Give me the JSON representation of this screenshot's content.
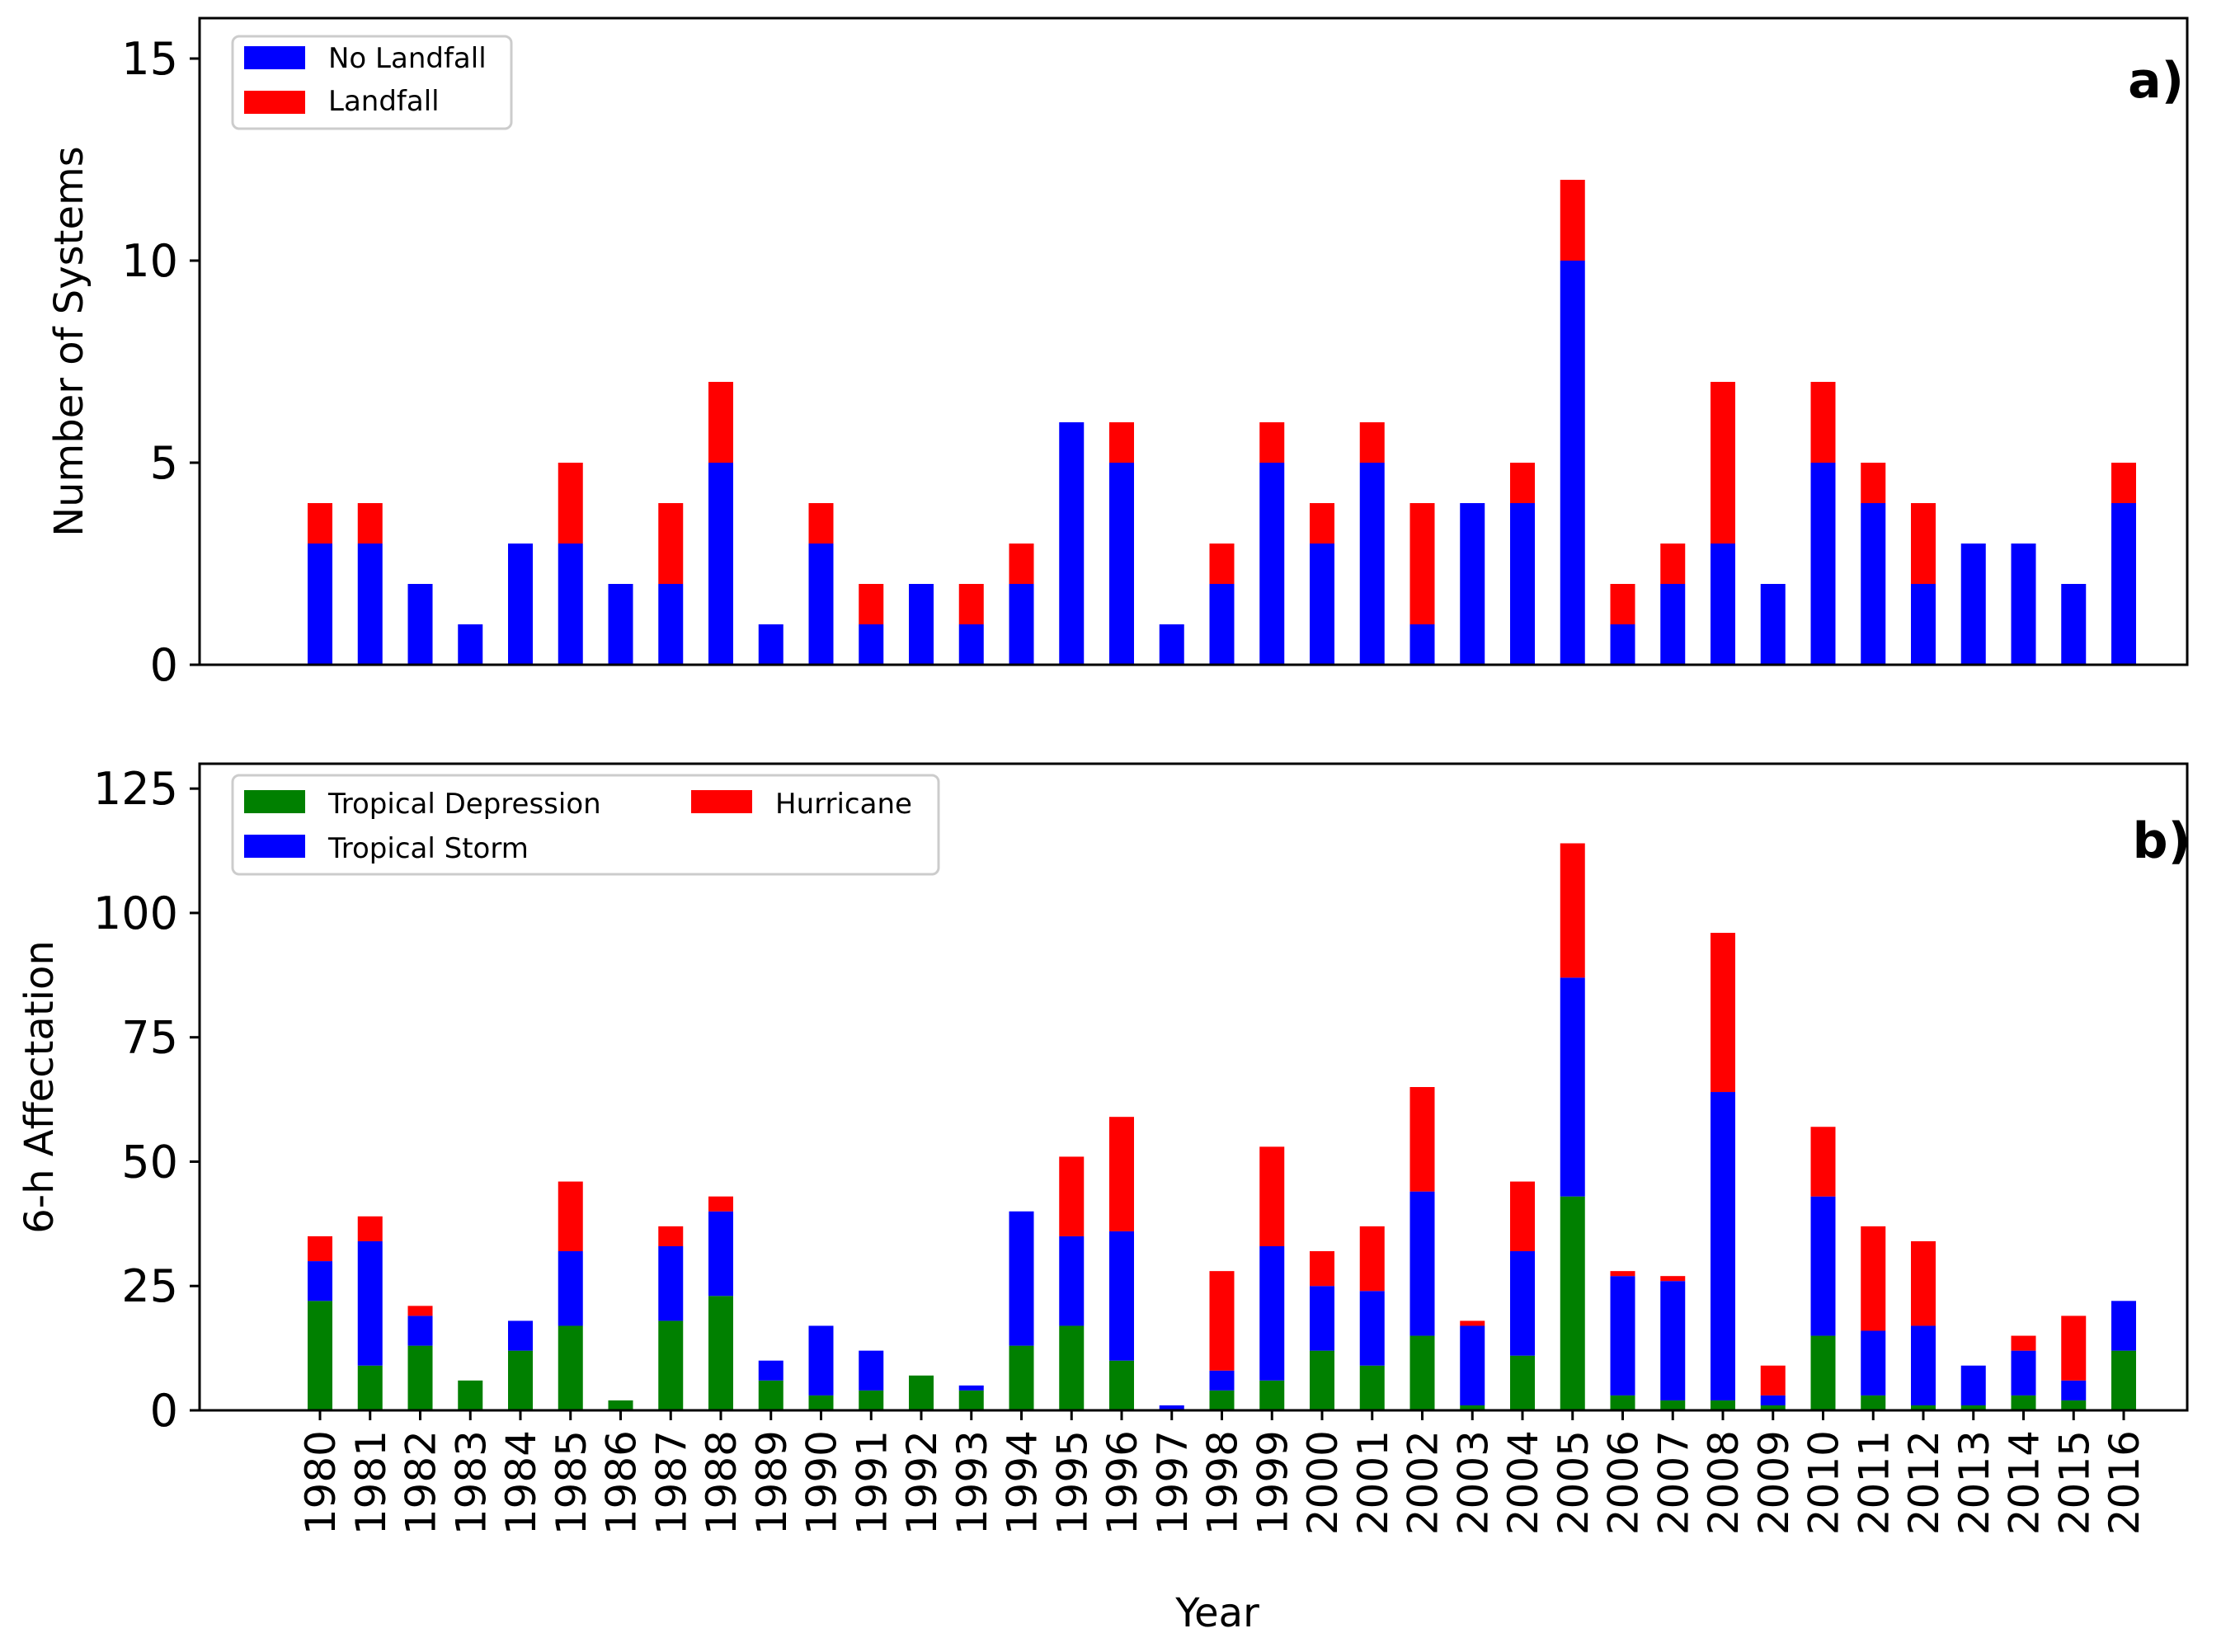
{
  "chart_data": [
    {
      "type": "bar",
      "stacked": true,
      "panel_tag": "a)",
      "title": "",
      "xlabel": "",
      "ylabel": "Number of Systems",
      "ylim": [
        0,
        16
      ],
      "yticks": [
        "0",
        "5",
        "10",
        "15"
      ],
      "categories": [
        "1980",
        "1981",
        "1982",
        "1983",
        "1984",
        "1985",
        "1986",
        "1987",
        "1988",
        "1989",
        "1990",
        "1991",
        "1992",
        "1993",
        "1994",
        "1995",
        "1996",
        "1997",
        "1998",
        "1999",
        "2000",
        "2001",
        "2002",
        "2003",
        "2004",
        "2005",
        "2006",
        "2007",
        "2008",
        "2009",
        "2010",
        "2011",
        "2012",
        "2013",
        "2014",
        "2015",
        "2016"
      ],
      "legend_position": "top-left",
      "series": [
        {
          "name": "No Landfall",
          "color": "#0000ff",
          "values": [
            3,
            3,
            2,
            1,
            3,
            3,
            2,
            2,
            5,
            1,
            3,
            1,
            2,
            1,
            2,
            6,
            5,
            1,
            2,
            5,
            3,
            5,
            1,
            4,
            4,
            10,
            1,
            2,
            3,
            2,
            5,
            4,
            2,
            3,
            3,
            2,
            4
          ]
        },
        {
          "name": "Landfall",
          "color": "#ff0000",
          "values": [
            1,
            1,
            0,
            0,
            0,
            2,
            0,
            2,
            2,
            0,
            1,
            1,
            0,
            1,
            1,
            0,
            1,
            0,
            1,
            1,
            1,
            1,
            3,
            0,
            1,
            2,
            1,
            1,
            4,
            0,
            2,
            1,
            2,
            0,
            0,
            0,
            1
          ]
        }
      ]
    },
    {
      "type": "bar",
      "stacked": true,
      "panel_tag": "b)",
      "title": "",
      "xlabel": "Year",
      "ylabel": "6-h Affectation",
      "ylim": [
        0,
        130
      ],
      "yticks": [
        "0",
        "25",
        "50",
        "75",
        "100",
        "125"
      ],
      "categories": [
        "1980",
        "1981",
        "1982",
        "1983",
        "1984",
        "1985",
        "1986",
        "1987",
        "1988",
        "1989",
        "1990",
        "1991",
        "1992",
        "1993",
        "1994",
        "1995",
        "1996",
        "1997",
        "1998",
        "1999",
        "2000",
        "2001",
        "2002",
        "2003",
        "2004",
        "2005",
        "2006",
        "2007",
        "2008",
        "2009",
        "2010",
        "2011",
        "2012",
        "2013",
        "2014",
        "2015",
        "2016"
      ],
      "legend_position": "top-left",
      "series": [
        {
          "name": "Tropical Depression",
          "color": "#008000",
          "values": [
            22,
            9,
            13,
            6,
            12,
            17,
            2,
            18,
            23,
            6,
            3,
            4,
            7,
            4,
            13,
            17,
            10,
            0,
            4,
            6,
            12,
            9,
            15,
            1,
            11,
            43,
            3,
            2,
            2,
            1,
            15,
            3,
            1,
            1,
            3,
            2,
            12
          ]
        },
        {
          "name": "Tropical Storm",
          "color": "#0000ff",
          "values": [
            8,
            25,
            6,
            0,
            6,
            15,
            0,
            15,
            17,
            4,
            14,
            8,
            0,
            1,
            27,
            18,
            26,
            1,
            4,
            27,
            13,
            15,
            29,
            16,
            21,
            44,
            24,
            24,
            62,
            2,
            28,
            13,
            16,
            8,
            9,
            4,
            10
          ]
        },
        {
          "name": "Hurricane",
          "color": "#ff0000",
          "values": [
            5,
            5,
            2,
            0,
            0,
            14,
            0,
            4,
            3,
            0,
            0,
            0,
            0,
            0,
            0,
            16,
            23,
            0,
            20,
            20,
            7,
            13,
            21,
            1,
            14,
            27,
            1,
            1,
            32,
            6,
            14,
            21,
            17,
            0,
            3,
            13,
            0
          ]
        }
      ]
    }
  ]
}
